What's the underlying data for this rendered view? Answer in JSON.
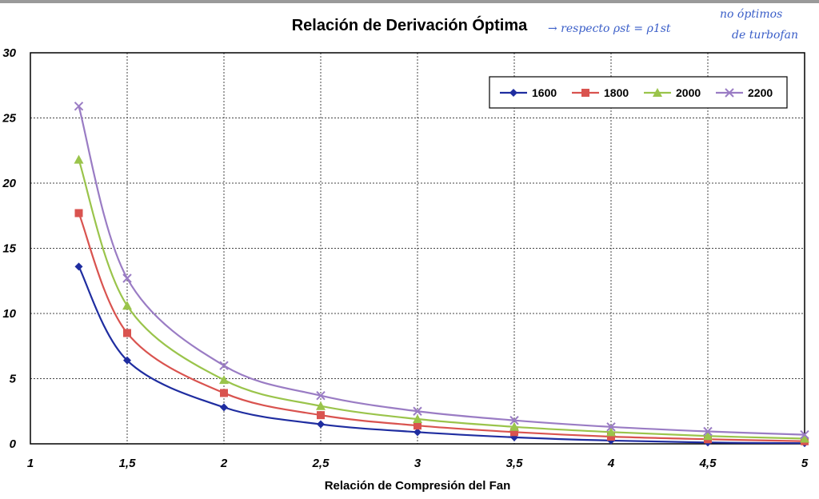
{
  "annotation": {
    "line1": "→ respecto  ρst = ρ1st",
    "line2": "no óptimos",
    "line3": "de turbofan"
  },
  "chart_data": {
    "type": "line",
    "title": "Relación de Derivación Óptima",
    "xlabel": "Relación de Compresión del Fan",
    "ylabel": "",
    "xlim": [
      1,
      5
    ],
    "ylim": [
      0,
      30
    ],
    "x_ticks": [
      "1",
      "1,5",
      "2",
      "2,5",
      "3",
      "3,5",
      "4",
      "4,5",
      "5"
    ],
    "y_ticks": [
      "0",
      "5",
      "10",
      "15",
      "20",
      "25",
      "30"
    ],
    "grid": true,
    "legend_position": "top-right",
    "x": [
      1.25,
      1.5,
      2,
      2.5,
      3,
      3.5,
      4,
      4.5,
      5
    ],
    "series": [
      {
        "name": "1600",
        "color": "#1f2da0",
        "marker": "diamond",
        "values": [
          13.6,
          6.4,
          2.8,
          1.5,
          0.9,
          0.5,
          0.25,
          0.1,
          0.05
        ]
      },
      {
        "name": "1800",
        "color": "#d9534f",
        "marker": "square",
        "values": [
          17.7,
          8.5,
          3.9,
          2.2,
          1.4,
          0.9,
          0.55,
          0.35,
          0.2
        ]
      },
      {
        "name": "2000",
        "color": "#9ac44b",
        "marker": "triangle",
        "values": [
          21.8,
          10.6,
          4.9,
          2.9,
          1.9,
          1.3,
          0.9,
          0.6,
          0.4
        ]
      },
      {
        "name": "2200",
        "color": "#9a7cc4",
        "marker": "x",
        "values": [
          25.9,
          12.7,
          6.0,
          3.7,
          2.5,
          1.8,
          1.3,
          0.95,
          0.7
        ]
      }
    ]
  }
}
